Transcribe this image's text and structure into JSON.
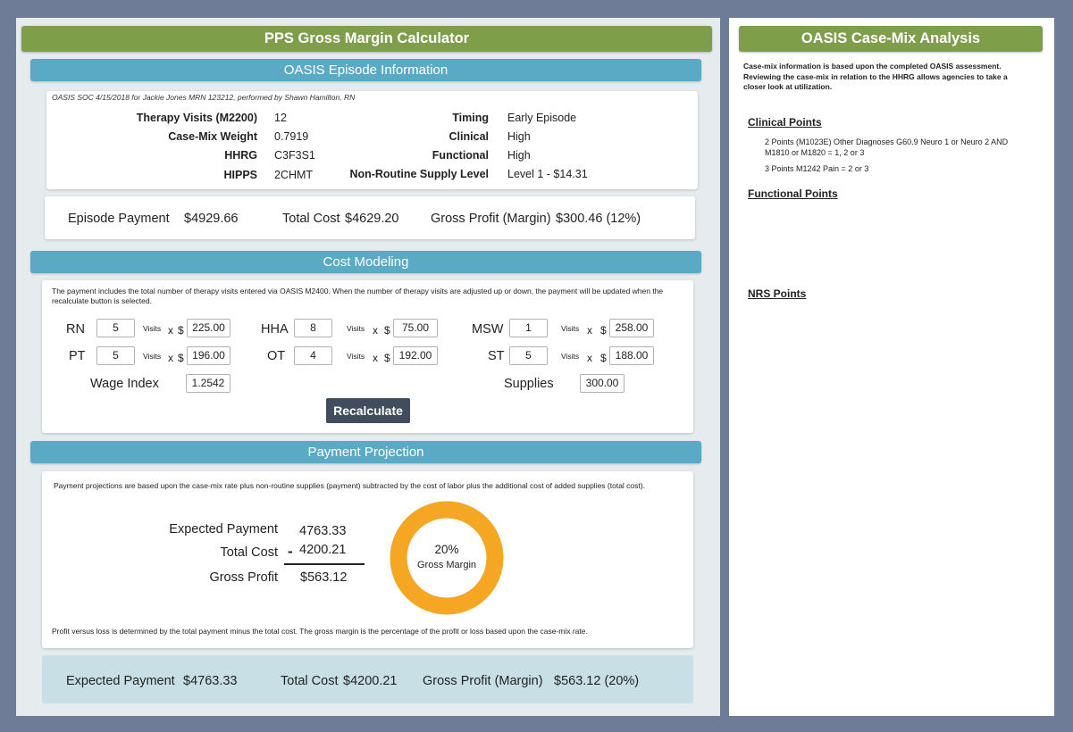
{
  "calculator": {
    "title": "PPS Gross Margin Calculator",
    "episode_section": "OASIS Episode Information",
    "episode_note": "OASIS SOC 4/15/2018 for Jackie Jones MRN 123212, performed by Shawn Hamilton, RN",
    "info_left": [
      {
        "label": "Therapy Visits (M2200)",
        "value": "12"
      },
      {
        "label": "Case-Mix Weight",
        "value": "0.7919"
      },
      {
        "label": "HHRG",
        "value": "C3F3S1"
      },
      {
        "label": "HIPPS",
        "value": "2CHMT"
      }
    ],
    "info_right": [
      {
        "label": "Timing",
        "value": "Early Episode"
      },
      {
        "label": "Clinical",
        "value": "High"
      },
      {
        "label": "Functional",
        "value": "High"
      },
      {
        "label": "Non-Routine Supply Level",
        "value": "Level 1 - $14.31"
      }
    ],
    "episode_summary": {
      "payment_label": "Episode Payment",
      "payment_value": "$4929.66",
      "cost_label": "Total Cost",
      "cost_value": "$4629.20",
      "profit_label": "Gross Profit (Margin)",
      "profit_value": "$300.46 (12%)"
    },
    "cost_section": "Cost Modeling",
    "cost_note": "The payment includes the total number of therapy visits entered via OASIS M2400. When the number of therapy visits are adjusted up or down, the payment will be updated when the recalculate button is selected.",
    "visits_word": "Visits",
    "times": "x",
    "dollar": "$",
    "disciplines": [
      {
        "label": "RN",
        "visits": "5",
        "rate": "225.00"
      },
      {
        "label": "HHA",
        "visits": "8",
        "rate": "75.00"
      },
      {
        "label": "MSW",
        "visits": "1",
        "rate": "258.00"
      },
      {
        "label": "PT",
        "visits": "5",
        "rate": "196.00"
      },
      {
        "label": "OT",
        "visits": "4",
        "rate": "192.00"
      },
      {
        "label": "ST",
        "visits": "5",
        "rate": "188.00"
      }
    ],
    "wage_index_label": "Wage Index",
    "wage_index_value": "1.2542",
    "supplies_label": "Supplies",
    "supplies_value": "300.00",
    "recalc_label": "Recalculate",
    "projection_section": "Payment Projection",
    "projection_note": "Payment projections are based upon the case-mix rate plus non-routine supplies (payment) subtracted by the cost of labor plus the additional cost of added supplies (total cost).",
    "projection": {
      "expected_label": "Expected Payment",
      "expected_value": "4763.33",
      "cost_label": "Total Cost",
      "minus": "-",
      "cost_value": "4200.21",
      "profit_label": "Gross Profit",
      "profit_value": "$563.12"
    },
    "margin": {
      "percent_text": "20%",
      "label": "Gross Margin",
      "fraction": 0.2
    },
    "projection_footer": "Profit versus loss is determined by the total payment minus the total cost. The gross margin is the percentage of the profit or loss based upon the case-mix rate.",
    "bottom_summary": {
      "payment_label": "Expected Payment",
      "payment_value": "$4763.33",
      "cost_label": "Total Cost",
      "cost_value": "$4200.21",
      "profit_label": "Gross Profit (Margin)",
      "profit_value": "$563.12 (20%)"
    }
  },
  "analysis": {
    "title": "OASIS Case-Mix Analysis",
    "intro": "Case-mix information is based upon the completed OASIS assessment. Reviewing the case-mix in relation to the HHRG allows agencies to take a closer look at utilization.",
    "clinical_heading": "Clinical Points",
    "clinical_items": [
      "2 Points (M1023E) Other Diagnoses G60.9 Neuro 1 or Neuro 2 AND M1810 or M1820 = 1, 2 or 3",
      "3 Points M1242 Pain = 2 or 3"
    ],
    "functional_heading": "Functional Points",
    "nrs_heading": "NRS Points"
  },
  "colors": {
    "title_green": "#7f9e4a",
    "section_blue": "#5aaac6",
    "donut_orange": "#f5a623",
    "button_dark": "#414d5c",
    "frame": "#6e7c98"
  }
}
